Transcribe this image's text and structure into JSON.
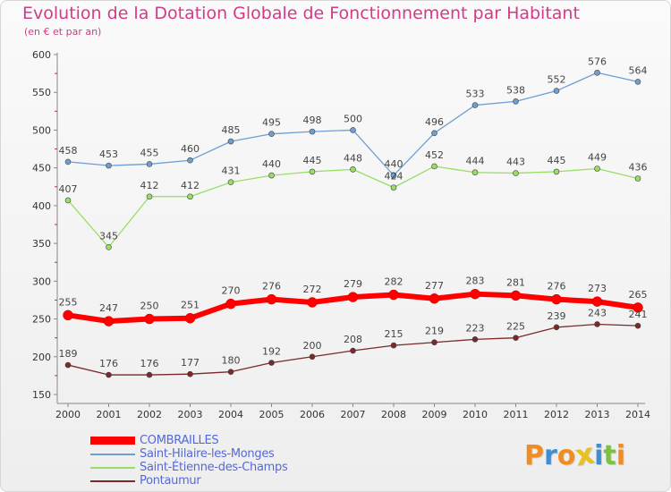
{
  "title": "Evolution de la Dotation Globale de Fonctionnement par Habitant",
  "subtitle": "(en € et par an)",
  "logo_text": "Proxiti",
  "colors": {
    "title": "#d23a8a",
    "legend_text": "#5569d6",
    "axis": "#888888",
    "tick_text": "#333333",
    "data_label": "#444444"
  },
  "chart_data": {
    "type": "line",
    "title": "Evolution de la Dotation Globale de Fonctionnement par Habitant",
    "subtitle": "(en € et par an)",
    "x": [
      2000,
      2001,
      2002,
      2003,
      2004,
      2005,
      2006,
      2007,
      2008,
      2009,
      2010,
      2011,
      2012,
      2013,
      2014
    ],
    "ylim": [
      150,
      600
    ],
    "yticks": [
      150,
      200,
      250,
      300,
      350,
      400,
      450,
      500,
      550,
      600
    ],
    "grid": false,
    "legend_position": "bottom-left",
    "series": [
      {
        "name": "COMBRAILLES",
        "color": "#ff0000",
        "values": [
          255,
          247,
          250,
          251,
          270,
          276,
          272,
          279,
          282,
          277,
          283,
          281,
          276,
          273,
          265
        ]
      },
      {
        "name": "Saint-Hilaire-les-Monges",
        "color": "#6f9ed1",
        "values": [
          458,
          453,
          455,
          460,
          485,
          495,
          498,
          500,
          440,
          496,
          533,
          538,
          552,
          576,
          564
        ]
      },
      {
        "name": "Saint-Étienne-des-Champs",
        "color": "#99dd66",
        "values": [
          407,
          345,
          412,
          412,
          431,
          440,
          445,
          448,
          424,
          452,
          444,
          443,
          445,
          449,
          436
        ]
      },
      {
        "name": "Pontaumur",
        "color": "#7a2828",
        "values": [
          189,
          176,
          176,
          177,
          180,
          192,
          200,
          208,
          215,
          219,
          223,
          225,
          239,
          243,
          241
        ]
      }
    ]
  }
}
